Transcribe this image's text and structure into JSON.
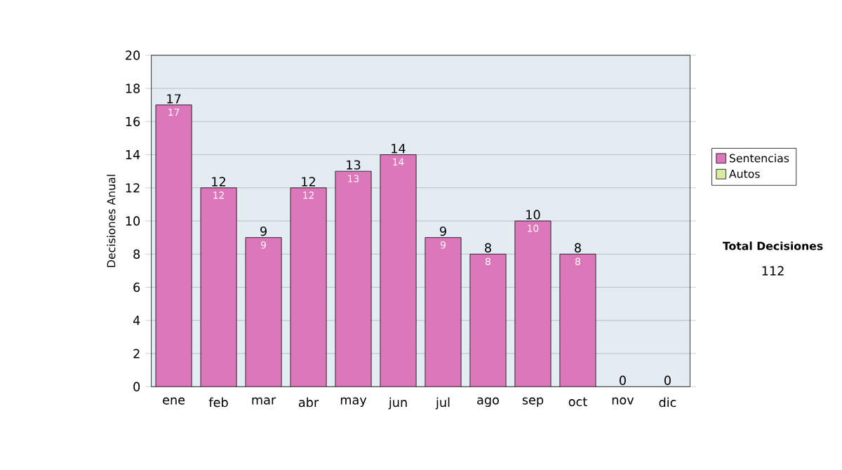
{
  "chart_data": {
    "type": "bar",
    "stacked": true,
    "ylabel": "Decisiones Anual",
    "categories": [
      "ene",
      "feb",
      "mar",
      "abr",
      "may",
      "jun",
      "jul",
      "ago",
      "sep",
      "oct",
      "nov",
      "dic"
    ],
    "series": [
      {
        "name": "Sentencias",
        "color": "#dd77bb",
        "values": [
          17,
          12,
          9,
          12,
          13,
          14,
          9,
          8,
          10,
          8,
          0,
          0
        ],
        "value_labels": [
          "17",
          "12",
          "9",
          "12",
          "13",
          "14",
          "9",
          "8",
          "10",
          "8",
          null,
          null
        ]
      },
      {
        "name": "Autos",
        "color": "#d8eca0",
        "values": [
          0,
          0,
          0,
          0,
          0,
          0,
          0,
          0,
          0,
          0,
          0,
          0
        ]
      }
    ],
    "totals": [
      "17",
      "12",
      "9",
      "12",
      "13",
      "14",
      "9",
      "8",
      "10",
      "8",
      "0",
      "0"
    ],
    "ylim": [
      0,
      20
    ],
    "yticks": [
      0,
      2,
      4,
      6,
      8,
      10,
      12,
      14,
      16,
      18,
      20
    ],
    "grid": "y",
    "legend": "right",
    "annotations": [
      "Total Decisiones",
      "112"
    ]
  }
}
